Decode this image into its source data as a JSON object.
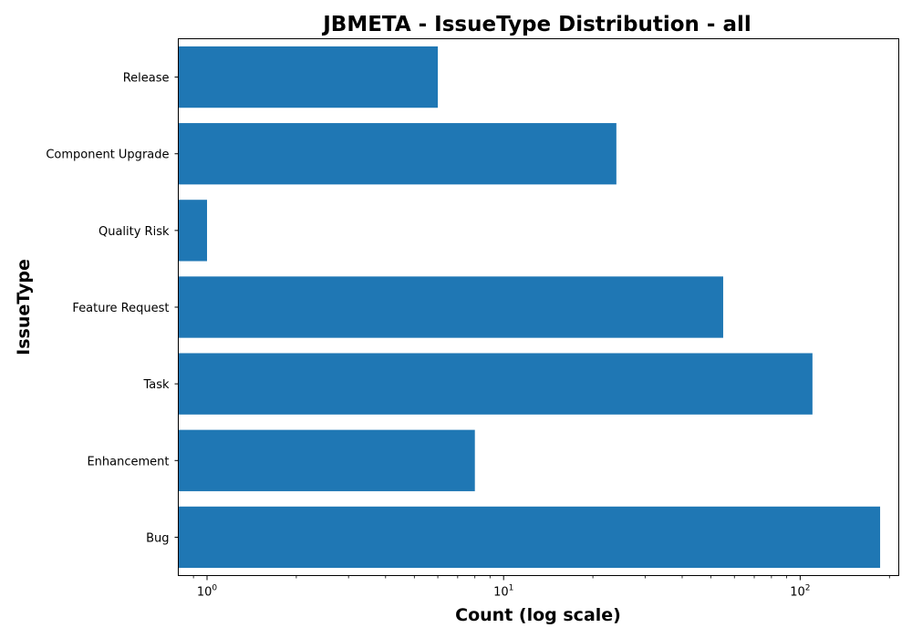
{
  "chart_data": {
    "type": "bar",
    "orientation": "horizontal",
    "title": "JBMETA - IssueType Distribution - all",
    "xlabel": "Count (log scale)",
    "ylabel": "IssueType",
    "x_scale": "log",
    "xlim": [
      0.8,
      215
    ],
    "x_ticks": [
      {
        "value": 1,
        "base": "10",
        "exp": "0"
      },
      {
        "value": 10,
        "base": "10",
        "exp": "1"
      },
      {
        "value": 100,
        "base": "10",
        "exp": "2"
      }
    ],
    "categories": [
      "Release",
      "Component Upgrade",
      "Quality Risk",
      "Feature Request",
      "Task",
      "Enhancement",
      "Bug"
    ],
    "values": [
      6,
      24,
      1,
      55,
      110,
      8,
      186
    ],
    "bar_color": "#1f77b4",
    "grid": false,
    "legend": false
  }
}
